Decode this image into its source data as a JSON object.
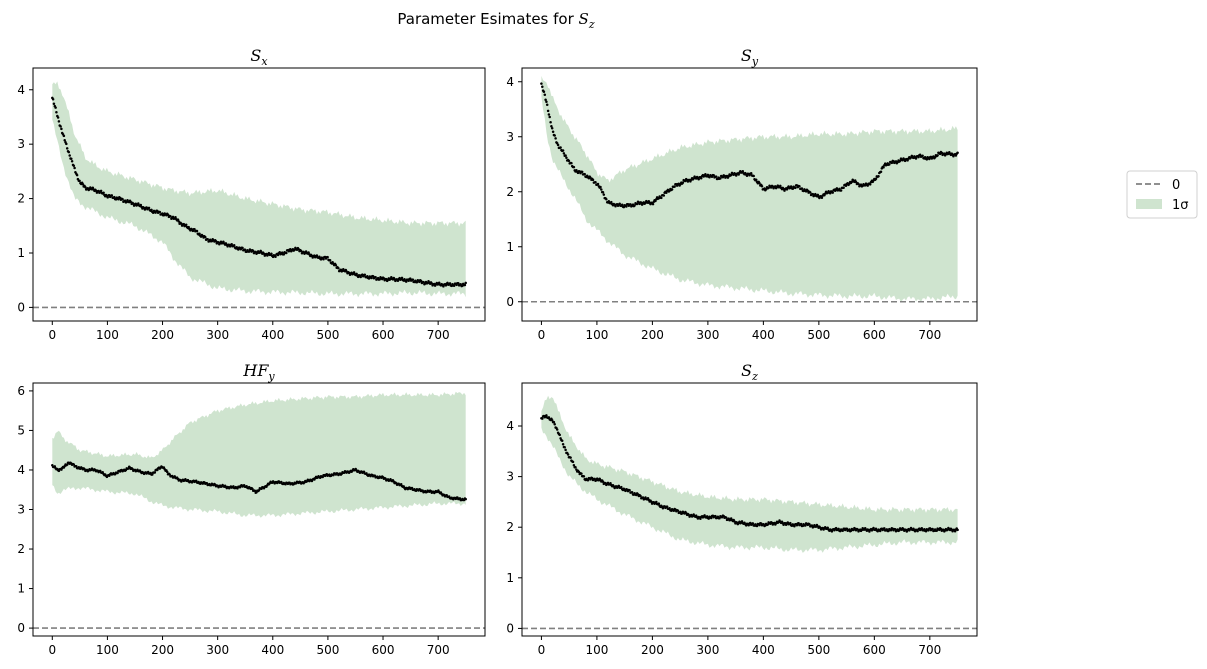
{
  "figure": {
    "title_prefix": "Parameter Esimates for ",
    "title_symbol": "S",
    "title_sub": "z"
  },
  "legend": {
    "entries": [
      {
        "label": "0",
        "kind": "dashed-line",
        "color": "#808080"
      },
      {
        "label": "1σ",
        "kind": "band",
        "color": "#cfe4cf"
      }
    ],
    "placement": "right, outside plots"
  },
  "colors": {
    "band": "#cfe4cf",
    "points": "#000000",
    "zero_line": "#808080"
  },
  "chart_data": [
    {
      "type": "scatter",
      "title_symbol": "S",
      "title_sub": "x",
      "xlim": [
        -35,
        785
      ],
      "ylim": [
        -0.25,
        4.4
      ],
      "xticks": [
        0,
        100,
        200,
        300,
        400,
        500,
        600,
        700
      ],
      "yticks": [
        0,
        1,
        2,
        3,
        4
      ],
      "zero_line": 0,
      "series_estimate": {
        "x": [
          0,
          10,
          20,
          30,
          40,
          50,
          60,
          80,
          100,
          120,
          150,
          180,
          200,
          220,
          240,
          260,
          280,
          300,
          320,
          350,
          380,
          400,
          420,
          440,
          460,
          480,
          500,
          520,
          550,
          580,
          600,
          620,
          650,
          680,
          700,
          720,
          750
        ],
        "y": [
          3.85,
          3.5,
          3.15,
          2.85,
          2.55,
          2.3,
          2.2,
          2.15,
          2.05,
          2.0,
          1.9,
          1.78,
          1.72,
          1.65,
          1.5,
          1.4,
          1.25,
          1.2,
          1.15,
          1.05,
          1.0,
          0.95,
          1.0,
          1.08,
          1.0,
          0.92,
          0.9,
          0.7,
          0.6,
          0.55,
          0.52,
          0.52,
          0.5,
          0.45,
          0.42,
          0.42,
          0.42
        ]
      },
      "band": {
        "x": [
          0,
          10,
          20,
          40,
          60,
          80,
          100,
          150,
          200,
          220,
          250,
          300,
          350,
          400,
          450,
          500,
          550,
          600,
          650,
          700,
          750
        ],
        "upper": [
          4.1,
          4.1,
          3.9,
          3.2,
          2.75,
          2.6,
          2.5,
          2.35,
          2.2,
          2.15,
          2.1,
          2.15,
          2.0,
          1.9,
          1.8,
          1.75,
          1.65,
          1.6,
          1.55,
          1.55,
          1.55
        ],
        "lower": [
          3.45,
          3.0,
          2.6,
          2.0,
          1.85,
          1.75,
          1.65,
          1.5,
          1.2,
          0.9,
          0.55,
          0.35,
          0.3,
          0.28,
          0.27,
          0.25,
          0.25,
          0.25,
          0.27,
          0.25,
          0.25
        ]
      }
    },
    {
      "type": "scatter",
      "title_symbol": "S",
      "title_sub": "y",
      "xlim": [
        -35,
        785
      ],
      "ylim": [
        -0.35,
        4.25
      ],
      "xticks": [
        0,
        100,
        200,
        300,
        400,
        500,
        600,
        700
      ],
      "yticks": [
        0,
        1,
        2,
        3,
        4
      ],
      "zero_line": 0,
      "series_estimate": {
        "x": [
          0,
          10,
          20,
          30,
          40,
          50,
          60,
          80,
          100,
          110,
          120,
          140,
          160,
          180,
          200,
          220,
          240,
          260,
          280,
          300,
          320,
          340,
          360,
          380,
          400,
          420,
          440,
          460,
          480,
          500,
          520,
          540,
          560,
          580,
          600,
          620,
          640,
          660,
          680,
          700,
          720,
          740,
          750
        ],
        "y": [
          3.95,
          3.6,
          3.1,
          2.85,
          2.7,
          2.55,
          2.4,
          2.3,
          2.15,
          2.0,
          1.8,
          1.75,
          1.75,
          1.8,
          1.8,
          1.95,
          2.1,
          2.2,
          2.25,
          2.3,
          2.25,
          2.3,
          2.35,
          2.3,
          2.05,
          2.1,
          2.05,
          2.1,
          2.0,
          1.9,
          2.0,
          2.05,
          2.2,
          2.1,
          2.2,
          2.5,
          2.55,
          2.6,
          2.65,
          2.6,
          2.7,
          2.68,
          2.68
        ]
      },
      "band": {
        "x": [
          0,
          10,
          20,
          40,
          60,
          80,
          100,
          120,
          150,
          200,
          250,
          300,
          350,
          400,
          450,
          500,
          550,
          600,
          650,
          700,
          750
        ],
        "upper": [
          4.05,
          4.0,
          3.7,
          3.3,
          3.0,
          2.7,
          2.35,
          2.2,
          2.4,
          2.6,
          2.8,
          2.9,
          2.95,
          3.0,
          3.0,
          3.05,
          3.05,
          3.1,
          3.1,
          3.1,
          3.15
        ],
        "lower": [
          3.7,
          3.0,
          2.6,
          2.2,
          1.9,
          1.5,
          1.3,
          1.1,
          0.85,
          0.6,
          0.4,
          0.3,
          0.25,
          0.2,
          0.15,
          0.12,
          0.1,
          0.1,
          0.05,
          0.05,
          0.1
        ]
      }
    },
    {
      "type": "scatter",
      "title_symbol": "HF",
      "title_sub": "y",
      "xlim": [
        -35,
        785
      ],
      "ylim": [
        -0.2,
        6.2
      ],
      "xticks": [
        0,
        100,
        200,
        300,
        400,
        500,
        600,
        700
      ],
      "yticks": [
        0,
        1,
        2,
        3,
        4,
        5,
        6
      ],
      "zero_line": 0,
      "series_estimate": {
        "x": [
          0,
          10,
          20,
          30,
          40,
          60,
          80,
          100,
          120,
          140,
          160,
          180,
          200,
          210,
          230,
          260,
          300,
          330,
          350,
          370,
          400,
          430,
          460,
          490,
          520,
          550,
          580,
          600,
          620,
          640,
          660,
          680,
          700,
          720,
          750
        ],
        "y": [
          4.1,
          4.0,
          4.05,
          4.2,
          4.1,
          4.0,
          4.0,
          3.85,
          3.95,
          4.05,
          3.95,
          3.9,
          4.1,
          3.9,
          3.75,
          3.7,
          3.6,
          3.55,
          3.6,
          3.45,
          3.7,
          3.65,
          3.7,
          3.85,
          3.9,
          4.0,
          3.85,
          3.8,
          3.7,
          3.55,
          3.5,
          3.45,
          3.45,
          3.3,
          3.25
        ]
      },
      "band": {
        "x": [
          0,
          10,
          20,
          50,
          100,
          150,
          180,
          200,
          220,
          250,
          300,
          350,
          400,
          450,
          500,
          550,
          600,
          650,
          700,
          750
        ],
        "upper": [
          4.8,
          5.0,
          4.8,
          4.5,
          4.35,
          4.4,
          4.3,
          4.5,
          4.8,
          5.2,
          5.5,
          5.65,
          5.75,
          5.8,
          5.85,
          5.85,
          5.9,
          5.9,
          5.9,
          5.95
        ],
        "lower": [
          3.6,
          3.4,
          3.5,
          3.55,
          3.45,
          3.4,
          3.2,
          3.1,
          3.05,
          3.0,
          2.95,
          2.85,
          2.85,
          2.9,
          2.95,
          3.0,
          3.05,
          3.1,
          3.15,
          3.15
        ]
      }
    },
    {
      "type": "scatter",
      "title_symbol": "S",
      "title_sub": "z",
      "xlim": [
        -35,
        785
      ],
      "ylim": [
        -0.15,
        4.85
      ],
      "xticks": [
        0,
        100,
        200,
        300,
        400,
        500,
        600,
        700
      ],
      "yticks": [
        0,
        1,
        2,
        3,
        4
      ],
      "zero_line": 0,
      "series_estimate": {
        "x": [
          0,
          10,
          20,
          30,
          40,
          50,
          60,
          70,
          80,
          100,
          120,
          150,
          180,
          200,
          220,
          250,
          280,
          300,
          330,
          350,
          380,
          400,
          430,
          450,
          480,
          500,
          520,
          550,
          600,
          650,
          700,
          750
        ],
        "y": [
          4.15,
          4.2,
          4.1,
          3.9,
          3.6,
          3.4,
          3.2,
          3.05,
          2.95,
          2.95,
          2.85,
          2.75,
          2.6,
          2.5,
          2.4,
          2.3,
          2.2,
          2.2,
          2.2,
          2.1,
          2.05,
          2.05,
          2.1,
          2.05,
          2.05,
          2.0,
          1.95,
          1.95,
          1.95,
          1.95,
          1.95,
          1.95
        ]
      },
      "band": {
        "x": [
          0,
          10,
          20,
          30,
          50,
          80,
          100,
          150,
          200,
          250,
          300,
          350,
          400,
          450,
          500,
          550,
          600,
          650,
          700,
          750
        ],
        "upper": [
          4.3,
          4.55,
          4.6,
          4.3,
          3.8,
          3.35,
          3.25,
          3.1,
          2.9,
          2.7,
          2.6,
          2.55,
          2.55,
          2.5,
          2.45,
          2.4,
          2.35,
          2.35,
          2.35,
          2.35
        ],
        "lower": [
          3.95,
          3.8,
          3.6,
          3.4,
          3.0,
          2.7,
          2.55,
          2.25,
          2.0,
          1.75,
          1.65,
          1.6,
          1.6,
          1.55,
          1.55,
          1.6,
          1.65,
          1.7,
          1.7,
          1.7
        ]
      }
    }
  ]
}
